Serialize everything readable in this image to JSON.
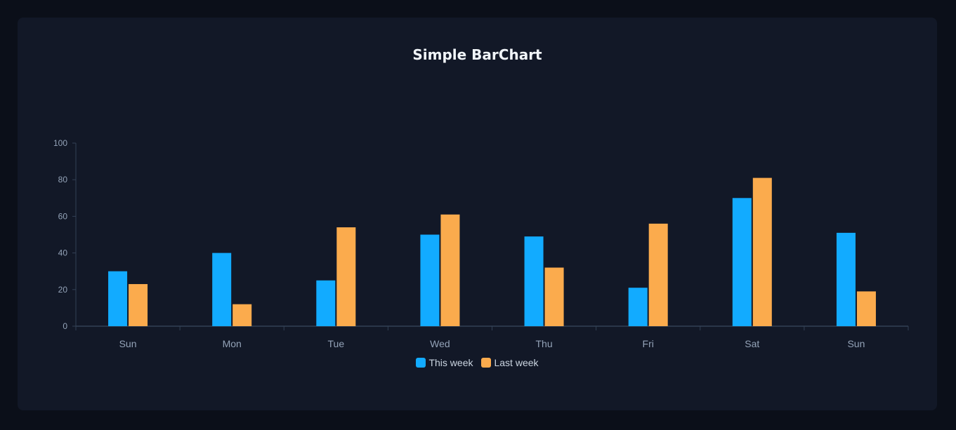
{
  "chart_data": {
    "type": "bar",
    "title": "Simple BarChart",
    "categories": [
      "Sun",
      "Mon",
      "Tue",
      "Wed",
      "Thu",
      "Fri",
      "Sat",
      "Sun"
    ],
    "series": [
      {
        "name": "This week",
        "color": "#12abff",
        "values": [
          30,
          40,
          25,
          50,
          49,
          21,
          70,
          51
        ]
      },
      {
        "name": "Last week",
        "color": "#fbab4d",
        "values": [
          23,
          12,
          54,
          61,
          32,
          56,
          81,
          19
        ]
      }
    ],
    "ylim": [
      0,
      100
    ],
    "yticks": [
      0,
      20,
      40,
      60,
      80,
      100
    ],
    "grid": false,
    "legend": "bottom-center"
  }
}
